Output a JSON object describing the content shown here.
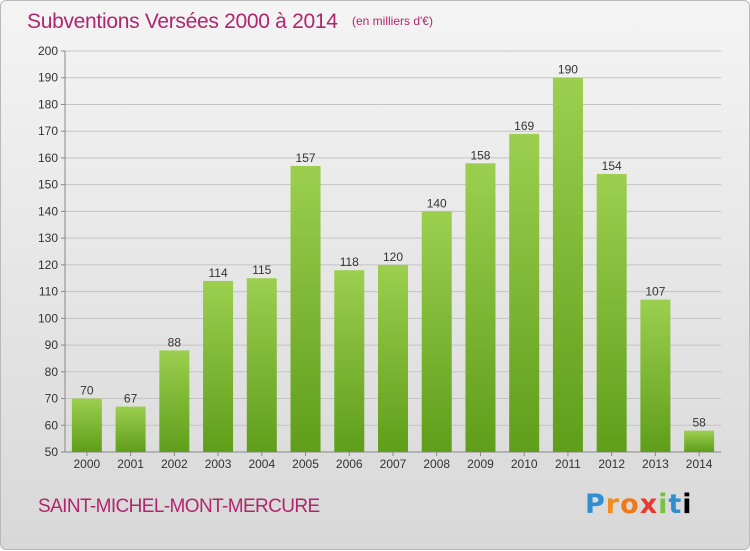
{
  "header": {
    "title": "Subventions Versées 2000 à 2014",
    "unit": "(en milliers d'€)"
  },
  "footer": {
    "commune": "SAINT-MICHEL-MONT-MERCURE",
    "logo_letters": [
      "P",
      "r",
      "o",
      "x",
      "i",
      "t",
      "i"
    ]
  },
  "colors": {
    "title": "#b0256e",
    "bar_top": "#9ccf4f",
    "bar_bottom": "#5f9e1a"
  },
  "chart_data": {
    "type": "bar",
    "title": "Subventions Versées 2000 à 2014",
    "categories": [
      "2000",
      "2001",
      "2002",
      "2003",
      "2004",
      "2005",
      "2006",
      "2007",
      "2008",
      "2009",
      "2010",
      "2011",
      "2012",
      "2013",
      "2014"
    ],
    "values": [
      70,
      67,
      88,
      114,
      115,
      157,
      118,
      120,
      140,
      158,
      169,
      190,
      154,
      107,
      58
    ],
    "ylim": [
      50,
      200
    ],
    "yticks": [
      50,
      60,
      70,
      80,
      90,
      100,
      110,
      120,
      130,
      140,
      150,
      160,
      170,
      180,
      190,
      200
    ],
    "grid": true,
    "data_labels": true
  }
}
